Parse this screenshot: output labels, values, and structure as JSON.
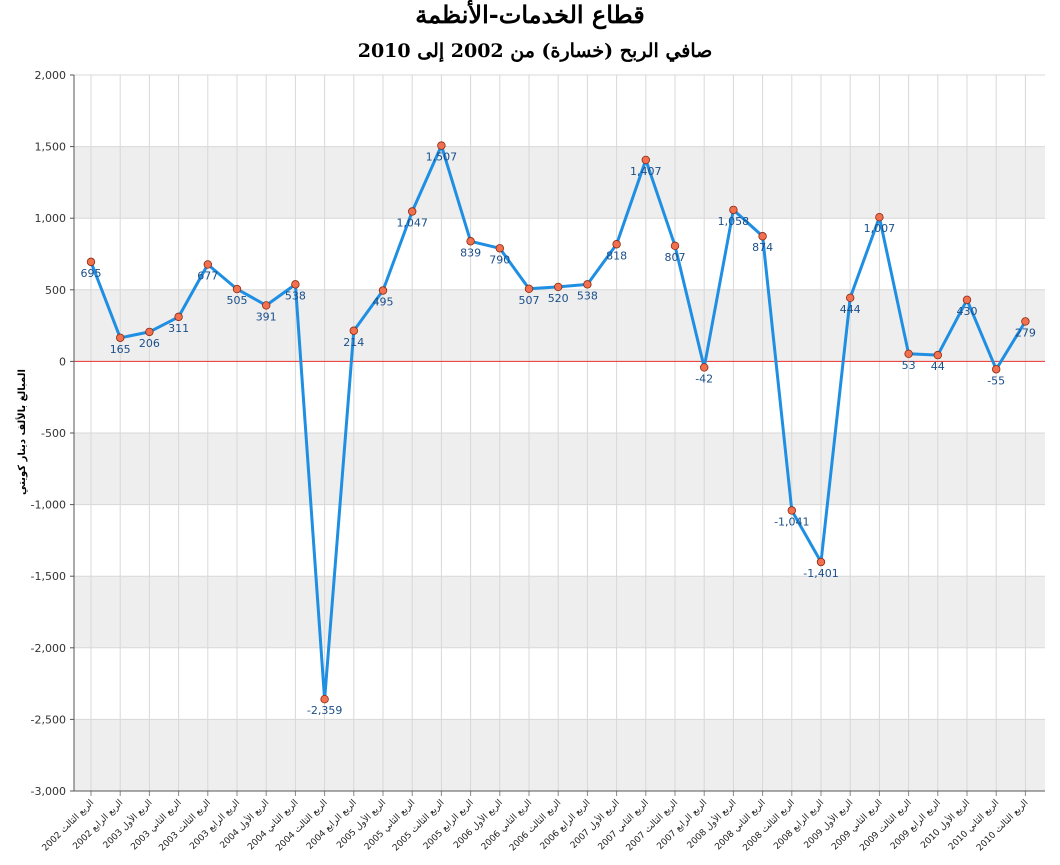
{
  "chart_data": {
    "type": "line",
    "title": "قطاع الخدمات-الأنظمة",
    "subtitle": "صافي الربح (خسارة) من 2002 إلى 2010",
    "ylabel": "المبالغ بالألف دينار كويتي",
    "xlabel": "",
    "ylim": [
      -3000,
      2000
    ],
    "yticks": [
      "-3,000",
      "-2,500",
      "-2,000",
      "-1,500",
      "-1,000",
      "-500",
      "0",
      "500",
      "1,000",
      "1,500",
      "2,000"
    ],
    "grid": true,
    "zero_line_color": "#e8302a",
    "line_color": "#1f8fe3",
    "marker_color": "#f07050",
    "band_color": "#eeeeee",
    "categories": [
      "الربع الثالث 2002",
      "الربع الرابع 2002",
      "الربع الأول 2003",
      "الربع الثاني 2003",
      "الربع الثالث 2003",
      "الربع الرابع 2003",
      "الربع الأول 2004",
      "الربع الثاني 2004",
      "الربع الثالث 2004",
      "الربع الرابع 2004",
      "الربع الأول 2005",
      "الربع الثاني 2005",
      "الربع الثالث 2005",
      "الربع الرابع 2005",
      "الربع الأول 2006",
      "الربع الثاني 2006",
      "الربع الثالث 2006",
      "الربع الرابع 2006",
      "الربع الأول 2007",
      "الربع الثاني 2007",
      "الربع الثالث 2007",
      "الربع الرابع 2007",
      "الربع الأول 2008",
      "الربع الثاني 2008",
      "الربع الثالث 2008",
      "الربع الرابع 2008",
      "الربع الأول 2009",
      "الربع الثاني 2009",
      "الربع الثالث 2009",
      "الربع الرابع 2009",
      "الربع الأول 2010",
      "الربع الثاني 2010",
      "الربع الثالث 2010"
    ],
    "series": [
      {
        "values": [
          695,
          165,
          206,
          311,
          677,
          505,
          391,
          538,
          -2359,
          214,
          495,
          1047,
          1507,
          839,
          790,
          507,
          520,
          538,
          818,
          1407,
          807,
          -42,
          1058,
          874,
          -1041,
          -1401,
          444,
          1007,
          53,
          44,
          430,
          -55,
          279
        ],
        "labels": [
          "695",
          "165",
          "206",
          "311",
          "677",
          "505",
          "391",
          "538",
          "-2,359",
          "214",
          "495",
          "1,047",
          "1,507",
          "839",
          "790",
          "507",
          "520",
          "538",
          "818",
          "1,407",
          "807",
          "-42",
          "1,058",
          "874",
          "-1,041",
          "-1,401",
          "444",
          "1,007",
          "53",
          "44",
          "430",
          "-55",
          "279"
        ]
      }
    ]
  }
}
